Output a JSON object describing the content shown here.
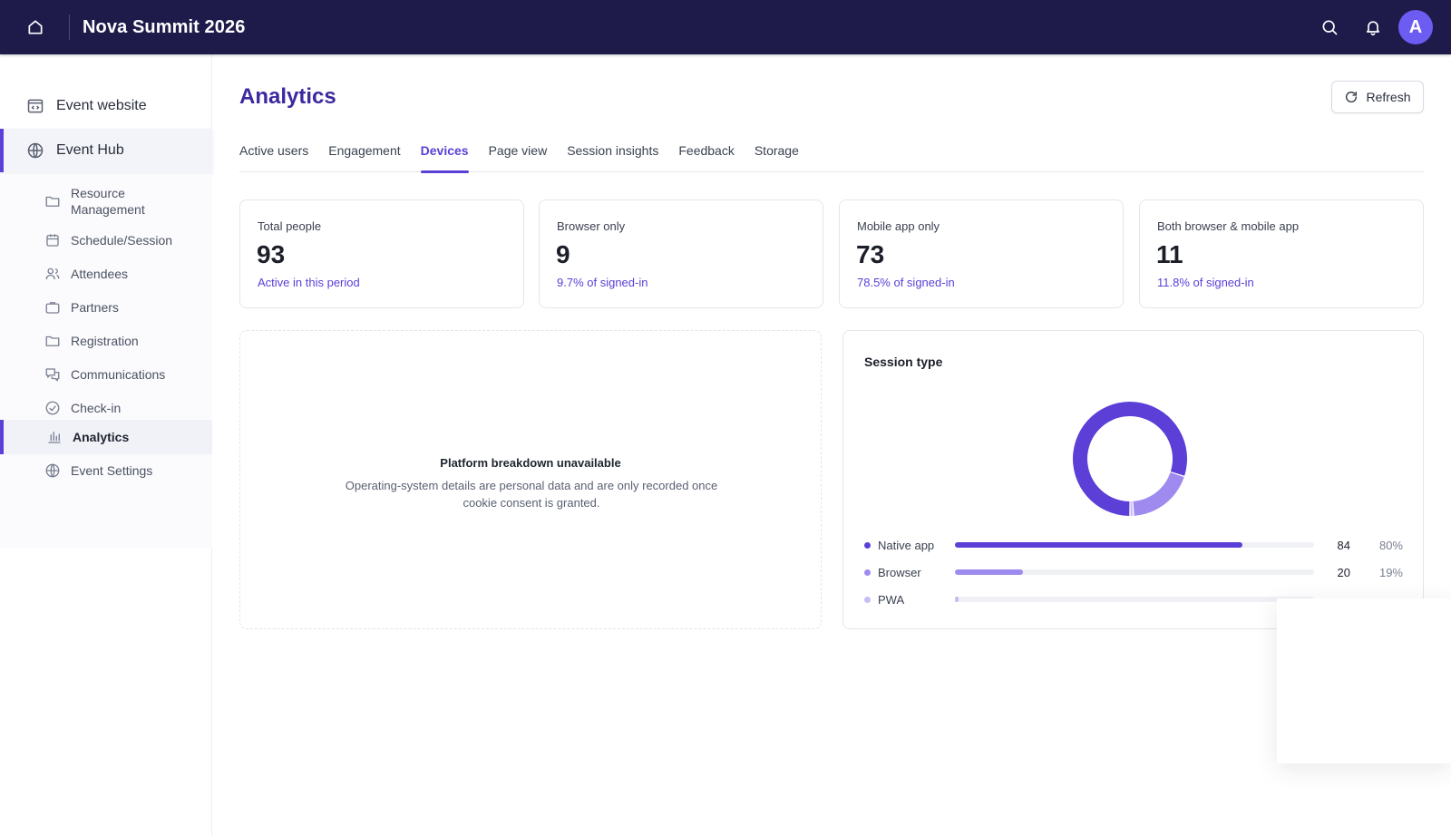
{
  "app": {
    "title": "Nova Summit 2026",
    "avatar_initial": "A"
  },
  "topbar": {
    "icons": [
      "home-icon",
      "search-icon",
      "bell-icon"
    ]
  },
  "sidebar": {
    "top_items": [
      {
        "label": "Event website",
        "icon": "website-icon"
      },
      {
        "label": "Event Hub",
        "icon": "globe-icon"
      }
    ],
    "sub_items": [
      {
        "label": "Resource Management",
        "icon": "folder-icon"
      },
      {
        "label": "Schedule/Session",
        "icon": "calendar-icon"
      },
      {
        "label": "Attendees",
        "icon": "users-icon"
      },
      {
        "label": "Partners",
        "icon": "briefcase-icon"
      },
      {
        "label": "Registration",
        "icon": "folder-icon"
      },
      {
        "label": "Communications",
        "icon": "chat-icon"
      },
      {
        "label": "Check-in",
        "icon": "check-circle-icon"
      },
      {
        "label": "Analytics",
        "icon": "bar-chart-icon"
      },
      {
        "label": "Event Settings",
        "icon": "globe-icon"
      }
    ]
  },
  "main": {
    "title": "Analytics",
    "refresh_label": "Refresh",
    "tabs": [
      {
        "label": "Active users"
      },
      {
        "label": "Engagement"
      },
      {
        "label": "Devices"
      },
      {
        "label": "Page view"
      },
      {
        "label": "Session insights"
      },
      {
        "label": "Feedback"
      },
      {
        "label": "Storage"
      }
    ],
    "active_tab": "Devices",
    "stats": [
      {
        "label": "Total people",
        "value": "93",
        "sub": "Active in this period"
      },
      {
        "label": "Browser only",
        "value": "9",
        "sub": "9.7% of signed-in"
      },
      {
        "label": "Mobile app only",
        "value": "73",
        "sub": "78.5% of signed-in"
      },
      {
        "label": "Both browser & mobile app",
        "value": "11",
        "sub": "11.8% of signed-in"
      }
    ],
    "empty_state": {
      "title": "Platform breakdown unavailable",
      "text": "Operating-system details are personal data and are only recorded once cookie consent is granted."
    },
    "session_type": {
      "title": "Session type",
      "rows": [
        {
          "name": "Native app",
          "count": "84",
          "pct": "80%",
          "fraction": 0.8,
          "color": "#5b3fd6"
        },
        {
          "name": "Browser",
          "count": "20",
          "pct": "19%",
          "fraction": 0.19,
          "color": "#9f8af0"
        },
        {
          "name": "PWA",
          "count": "",
          "pct": "",
          "fraction": 0.01,
          "color": "#c7bdf6"
        }
      ]
    }
  },
  "colors": {
    "topbar": "#1e1b4b",
    "accent": "#5b3fd6"
  }
}
